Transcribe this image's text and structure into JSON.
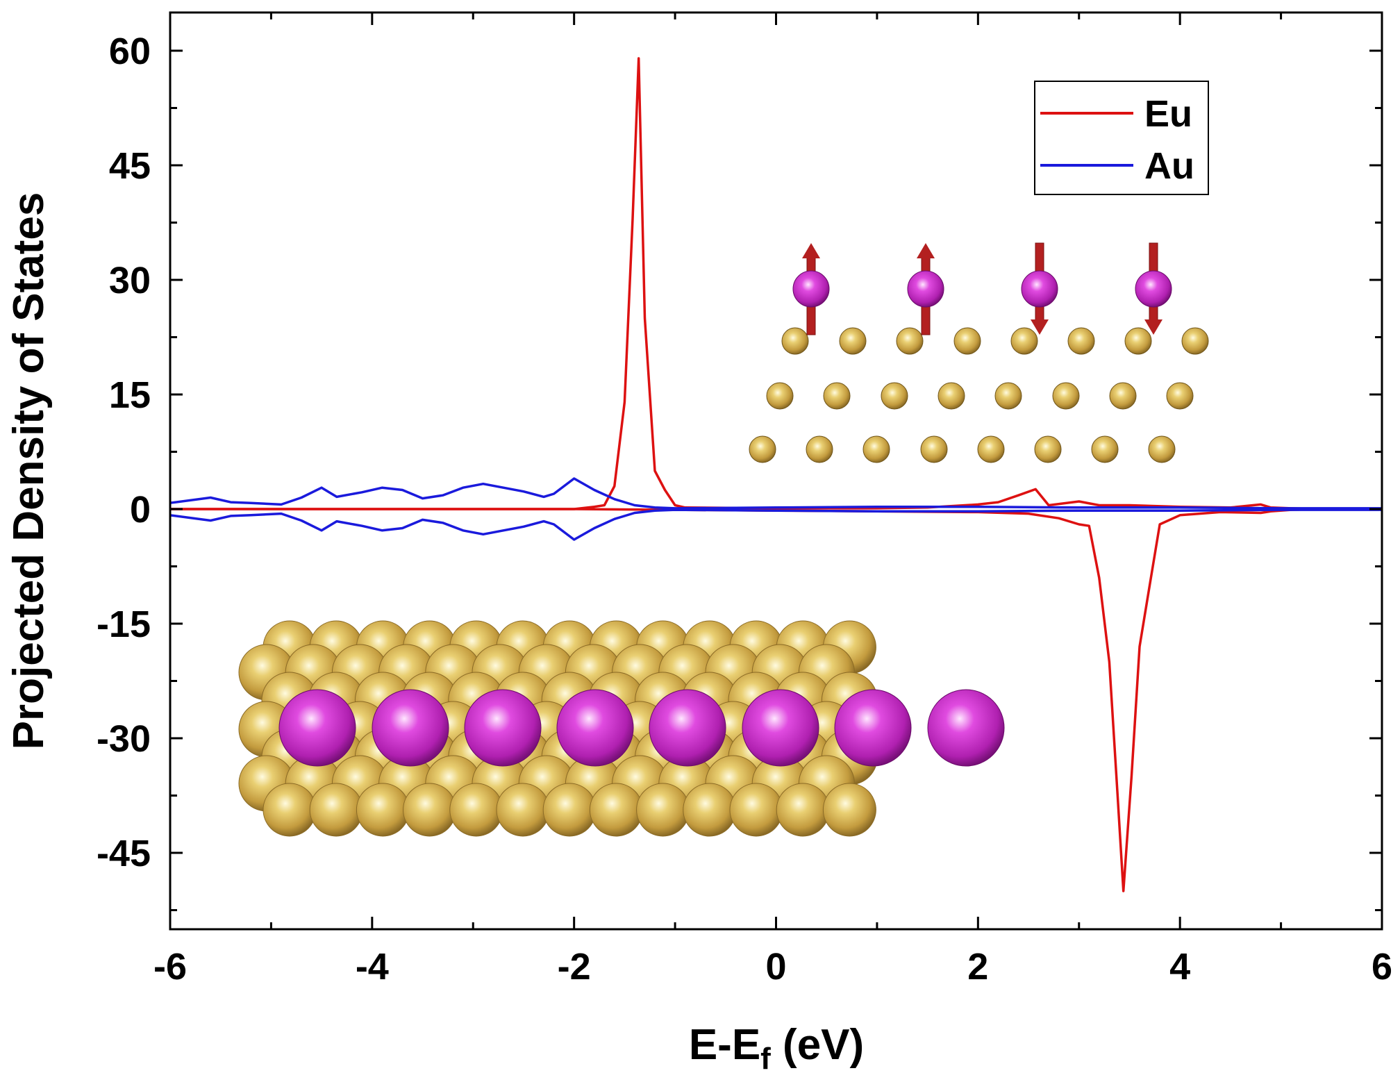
{
  "chart_data": {
    "type": "line",
    "title": "",
    "xlabel": {
      "main": "E-E",
      "sub": "f",
      "unit": " (eV)"
    },
    "ylabel": "Projected Density of States",
    "xlim": [
      -6,
      6
    ],
    "ylim": [
      -55,
      65
    ],
    "xticks": [
      -6,
      -4,
      -2,
      0,
      2,
      4,
      6
    ],
    "xtick_labels": [
      "-6",
      "-4",
      "-2",
      "0",
      "2",
      "4",
      "6"
    ],
    "yticks": [
      -45,
      -30,
      -15,
      0,
      15,
      30,
      45,
      60
    ],
    "ytick_labels": [
      "-45",
      "-30",
      "-15",
      "0",
      "15",
      "30",
      "45",
      "60"
    ],
    "grid": false,
    "legend": {
      "position": "top-right",
      "entries": [
        "Eu",
        "Au"
      ]
    },
    "series": [
      {
        "name": "Eu",
        "color": "#dd1111",
        "part": "up",
        "x": [
          -6.0,
          -2.0,
          -1.8,
          -1.7,
          -1.6,
          -1.5,
          -1.42,
          -1.36,
          -1.3,
          -1.2,
          -1.1,
          -1.0,
          -0.9,
          0,
          1.0,
          1.5,
          2.0,
          2.2,
          2.4,
          2.57,
          2.7,
          3.0,
          3.2,
          3.5,
          4.0,
          4.5,
          4.8,
          4.9,
          5.1,
          5.4,
          6.0
        ],
        "y": [
          0,
          0,
          0.3,
          0.5,
          3,
          14,
          38,
          59,
          25,
          5,
          2.5,
          0.5,
          0.2,
          0.1,
          0.1,
          0.2,
          0.6,
          0.9,
          1.8,
          2.6,
          0.5,
          1.0,
          0.5,
          0.5,
          0.3,
          0.2,
          0.6,
          0.2,
          0.1,
          0,
          0
        ]
      },
      {
        "name": "Eu",
        "color": "#dd1111",
        "part": "down",
        "x": [
          -6.0,
          -2.0,
          -1.0,
          0,
          1.0,
          2.0,
          2.5,
          2.8,
          3.0,
          3.1,
          3.2,
          3.3,
          3.38,
          3.44,
          3.52,
          3.6,
          3.7,
          3.8,
          4.0,
          4.4,
          4.8,
          4.9,
          5.1,
          5.4,
          6.0
        ],
        "y": [
          0,
          0,
          -0.1,
          -0.2,
          -0.3,
          -0.4,
          -0.6,
          -1.2,
          -2,
          -2.2,
          -9,
          -20,
          -37,
          -50,
          -35,
          -18,
          -10,
          -2,
          -0.8,
          -0.4,
          -0.5,
          -0.3,
          -0.1,
          0,
          0
        ]
      },
      {
        "name": "Au",
        "color": "#1a1adc",
        "part": "up",
        "x": [
          -6.0,
          -5.6,
          -5.4,
          -5.2,
          -4.9,
          -4.7,
          -4.5,
          -4.35,
          -4.1,
          -3.9,
          -3.7,
          -3.5,
          -3.3,
          -3.1,
          -2.9,
          -2.7,
          -2.5,
          -2.3,
          -2.2,
          -2.0,
          -1.8,
          -1.6,
          -1.4,
          -1.2,
          -1.0,
          0,
          1.0,
          2.0,
          3.0,
          4.0,
          5.0,
          5.4,
          6.0
        ],
        "y": [
          0.8,
          1.5,
          0.9,
          0.8,
          0.6,
          1.5,
          2.8,
          1.6,
          2.2,
          2.8,
          2.5,
          1.4,
          1.8,
          2.8,
          3.3,
          2.8,
          2.3,
          1.6,
          2.0,
          4.0,
          2.5,
          1.3,
          0.5,
          0.2,
          0.1,
          0.2,
          0.3,
          0.3,
          0.2,
          0.2,
          0.1,
          0.1,
          0.1
        ]
      },
      {
        "name": "Au",
        "color": "#1a1adc",
        "part": "down",
        "x": [
          -6.0,
          -5.6,
          -5.4,
          -5.2,
          -4.9,
          -4.7,
          -4.5,
          -4.35,
          -4.1,
          -3.9,
          -3.7,
          -3.5,
          -3.3,
          -3.1,
          -2.9,
          -2.7,
          -2.5,
          -2.3,
          -2.2,
          -2.0,
          -1.8,
          -1.6,
          -1.4,
          -1.2,
          -1.0,
          0,
          1.0,
          2.0,
          3.0,
          4.0,
          5.0,
          5.4,
          6.0
        ],
        "y": [
          -0.8,
          -1.5,
          -0.9,
          -0.8,
          -0.6,
          -1.5,
          -2.8,
          -1.6,
          -2.2,
          -2.8,
          -2.5,
          -1.4,
          -1.8,
          -2.8,
          -3.3,
          -2.8,
          -2.3,
          -1.6,
          -2.0,
          -4.0,
          -2.5,
          -1.3,
          -0.5,
          -0.2,
          -0.1,
          -0.2,
          -0.3,
          -0.3,
          -0.2,
          -0.2,
          -0.1,
          -0.1,
          -0.1
        ]
      }
    ]
  },
  "colors": {
    "eu_atom": "#c02ac0",
    "au_atom": "#c8a040",
    "spin_arrow": "#b32020"
  }
}
